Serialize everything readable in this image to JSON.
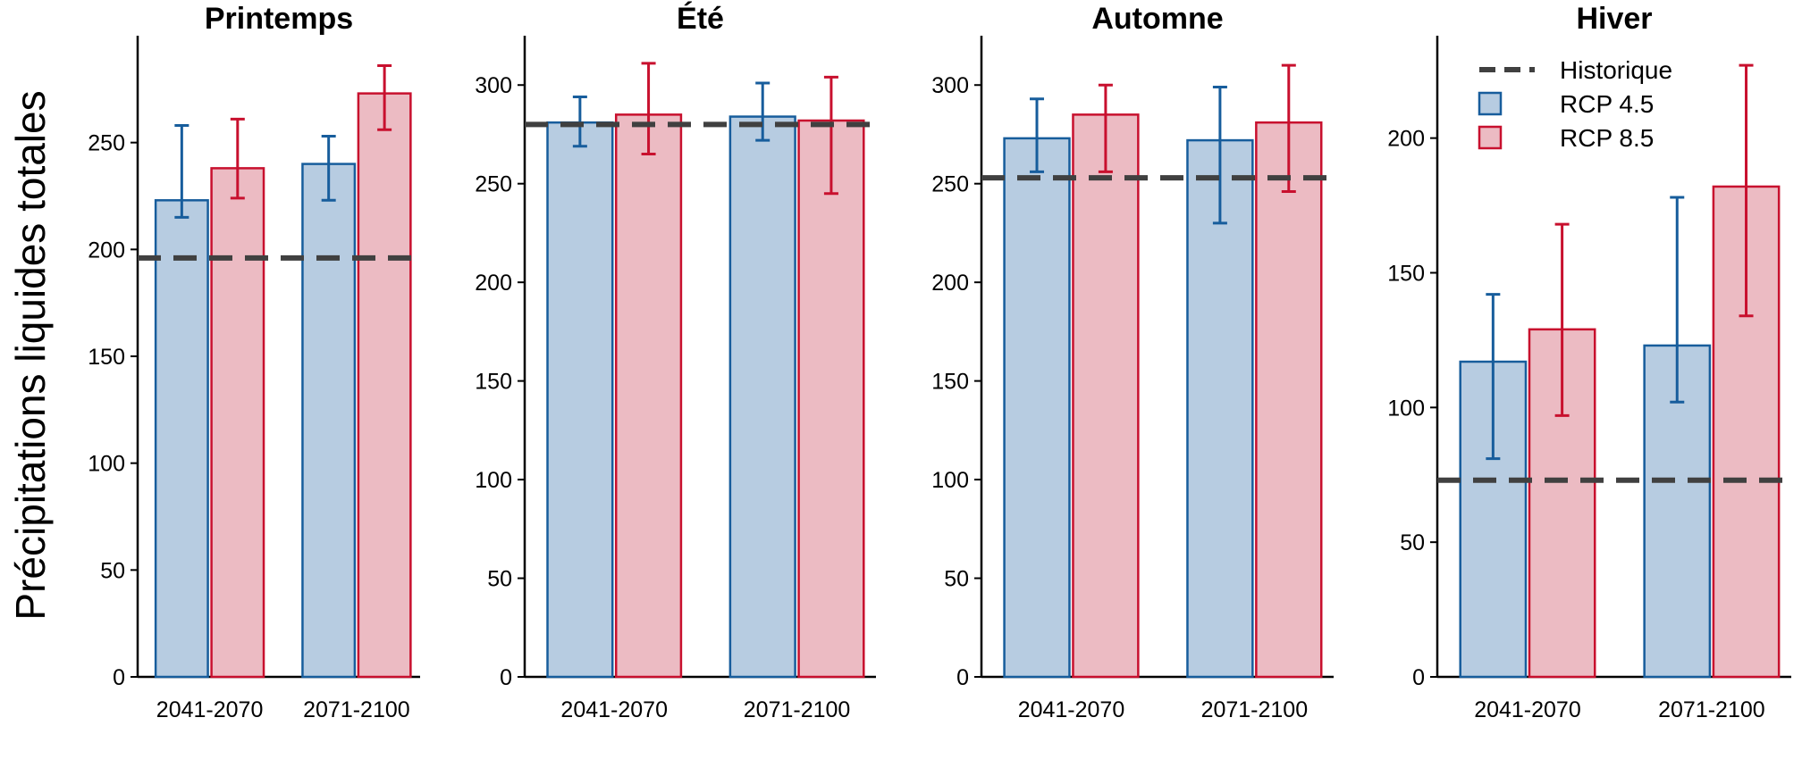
{
  "ylabel": "Précipitations liquides totales",
  "legend": {
    "entries": [
      {
        "label": "Historique",
        "kind": "dashed-line",
        "color": "#404040"
      },
      {
        "label": "RCP 4.5",
        "kind": "box",
        "fill": "#b7cce1",
        "stroke": "#175d9c"
      },
      {
        "label": "RCP 8.5",
        "kind": "box",
        "fill": "#ecbbc3",
        "stroke": "#c8102e"
      }
    ],
    "placement": "top-left of Hiver panel"
  },
  "colors": {
    "rcp45_fill": "#b7cce1",
    "rcp45_stroke": "#175d9c",
    "rcp85_fill": "#ecbbc3",
    "rcp85_stroke": "#c8102e",
    "historic_line": "#404040"
  },
  "chart_data": [
    {
      "type": "bar",
      "title": "Printemps",
      "categories": [
        "2041-2070",
        "2071-2100"
      ],
      "ylim": [
        0,
        300
      ],
      "yticks": [
        0,
        50,
        100,
        150,
        200,
        250
      ],
      "historic": 196,
      "series": [
        {
          "name": "RCP 4.5",
          "values": [
            223,
            240
          ],
          "err_low": [
            215,
            223
          ],
          "err_high": [
            258,
            253
          ]
        },
        {
          "name": "RCP 8.5",
          "values": [
            238,
            273
          ],
          "err_low": [
            224,
            256
          ],
          "err_high": [
            261,
            286
          ]
        }
      ]
    },
    {
      "type": "bar",
      "title": "Été",
      "categories": [
        "2041-2070",
        "2071-2100"
      ],
      "ylim": [
        0,
        325
      ],
      "yticks": [
        0,
        50,
        100,
        150,
        200,
        250,
        300
      ],
      "historic": 280,
      "series": [
        {
          "name": "RCP 4.5",
          "values": [
            281,
            284
          ],
          "err_low": [
            269,
            272
          ],
          "err_high": [
            294,
            301
          ]
        },
        {
          "name": "RCP 8.5",
          "values": [
            285,
            282
          ],
          "err_low": [
            265,
            245
          ],
          "err_high": [
            311,
            304
          ]
        }
      ]
    },
    {
      "type": "bar",
      "title": "Automne",
      "categories": [
        "2041-2070",
        "2071-2100"
      ],
      "ylim": [
        0,
        325
      ],
      "yticks": [
        0,
        50,
        100,
        150,
        200,
        250,
        300
      ],
      "historic": 253,
      "series": [
        {
          "name": "RCP 4.5",
          "values": [
            273,
            272
          ],
          "err_low": [
            256,
            230
          ],
          "err_high": [
            293,
            299
          ]
        },
        {
          "name": "RCP 8.5",
          "values": [
            285,
            281
          ],
          "err_low": [
            256,
            246
          ],
          "err_high": [
            300,
            310
          ]
        }
      ]
    },
    {
      "type": "bar",
      "title": "Hiver",
      "categories": [
        "2041-2070",
        "2071-2100"
      ],
      "ylim": [
        0,
        238
      ],
      "yticks": [
        0,
        50,
        100,
        150,
        200
      ],
      "historic": 73,
      "series": [
        {
          "name": "RCP 4.5",
          "values": [
            117,
            123
          ],
          "err_low": [
            81,
            102
          ],
          "err_high": [
            142,
            178
          ]
        },
        {
          "name": "RCP 8.5",
          "values": [
            129,
            182
          ],
          "err_low": [
            97,
            134
          ],
          "err_high": [
            168,
            227
          ]
        }
      ]
    }
  ]
}
